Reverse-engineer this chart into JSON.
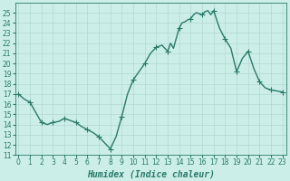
{
  "x": [
    0,
    0.5,
    1,
    1.5,
    2,
    2.5,
    3,
    3.5,
    4,
    4.5,
    5,
    5.5,
    6,
    6.5,
    7,
    7.5,
    8,
    8.5,
    9,
    9.5,
    10,
    10.5,
    11,
    11.5,
    12,
    12.5,
    13,
    13.25,
    13.5,
    13.75,
    14,
    14.25,
    14.5,
    14.75,
    15,
    15.25,
    15.5,
    15.75,
    16,
    16.25,
    16.5,
    16.75,
    17,
    17.5,
    18,
    18.5,
    19,
    19.5,
    20,
    20.5,
    21,
    21.5,
    22,
    22.5,
    23
  ],
  "y": [
    17.0,
    16.5,
    16.2,
    15.2,
    14.2,
    14.0,
    14.2,
    14.3,
    14.6,
    14.4,
    14.2,
    13.8,
    13.5,
    13.2,
    12.8,
    12.2,
    11.6,
    12.8,
    14.8,
    17.0,
    18.4,
    19.2,
    20.0,
    21.0,
    21.6,
    21.8,
    21.2,
    22.0,
    21.5,
    22.5,
    23.5,
    24.0,
    24.1,
    24.3,
    24.4,
    24.8,
    25.0,
    24.9,
    24.8,
    25.1,
    25.2,
    24.8,
    25.2,
    23.5,
    22.4,
    21.5,
    19.2,
    20.5,
    21.2,
    19.5,
    18.2,
    17.6,
    17.4,
    17.3,
    17.2
  ],
  "marker_x": [
    0,
    1,
    2,
    3,
    4,
    5,
    6,
    7,
    8,
    9,
    10,
    11,
    12,
    13,
    14,
    15,
    16,
    17,
    18,
    19,
    20,
    21,
    22,
    23
  ],
  "marker_y": [
    17.0,
    16.2,
    14.2,
    14.2,
    14.6,
    14.2,
    13.5,
    12.8,
    11.6,
    14.8,
    18.4,
    20.0,
    21.6,
    21.2,
    23.5,
    24.4,
    24.8,
    25.2,
    22.4,
    19.2,
    21.2,
    18.2,
    17.4,
    17.2
  ],
  "line_color": "#2a7a6a",
  "marker": "+",
  "marker_size": 4,
  "background_color": "#cceee8",
  "grid_color": "#aad4cc",
  "xlabel": "Humidex (Indice chaleur)",
  "ylim": [
    11,
    26
  ],
  "xlim": [
    -0.3,
    23.3
  ],
  "yticks": [
    11,
    12,
    13,
    14,
    15,
    16,
    17,
    18,
    19,
    20,
    21,
    22,
    23,
    24,
    25
  ],
  "xticks": [
    0,
    1,
    2,
    3,
    4,
    5,
    6,
    7,
    8,
    9,
    10,
    11,
    12,
    13,
    14,
    15,
    16,
    17,
    18,
    19,
    20,
    21,
    22,
    23
  ],
  "tick_fontsize": 5.5,
  "xlabel_fontsize": 7,
  "line_width": 1.0
}
